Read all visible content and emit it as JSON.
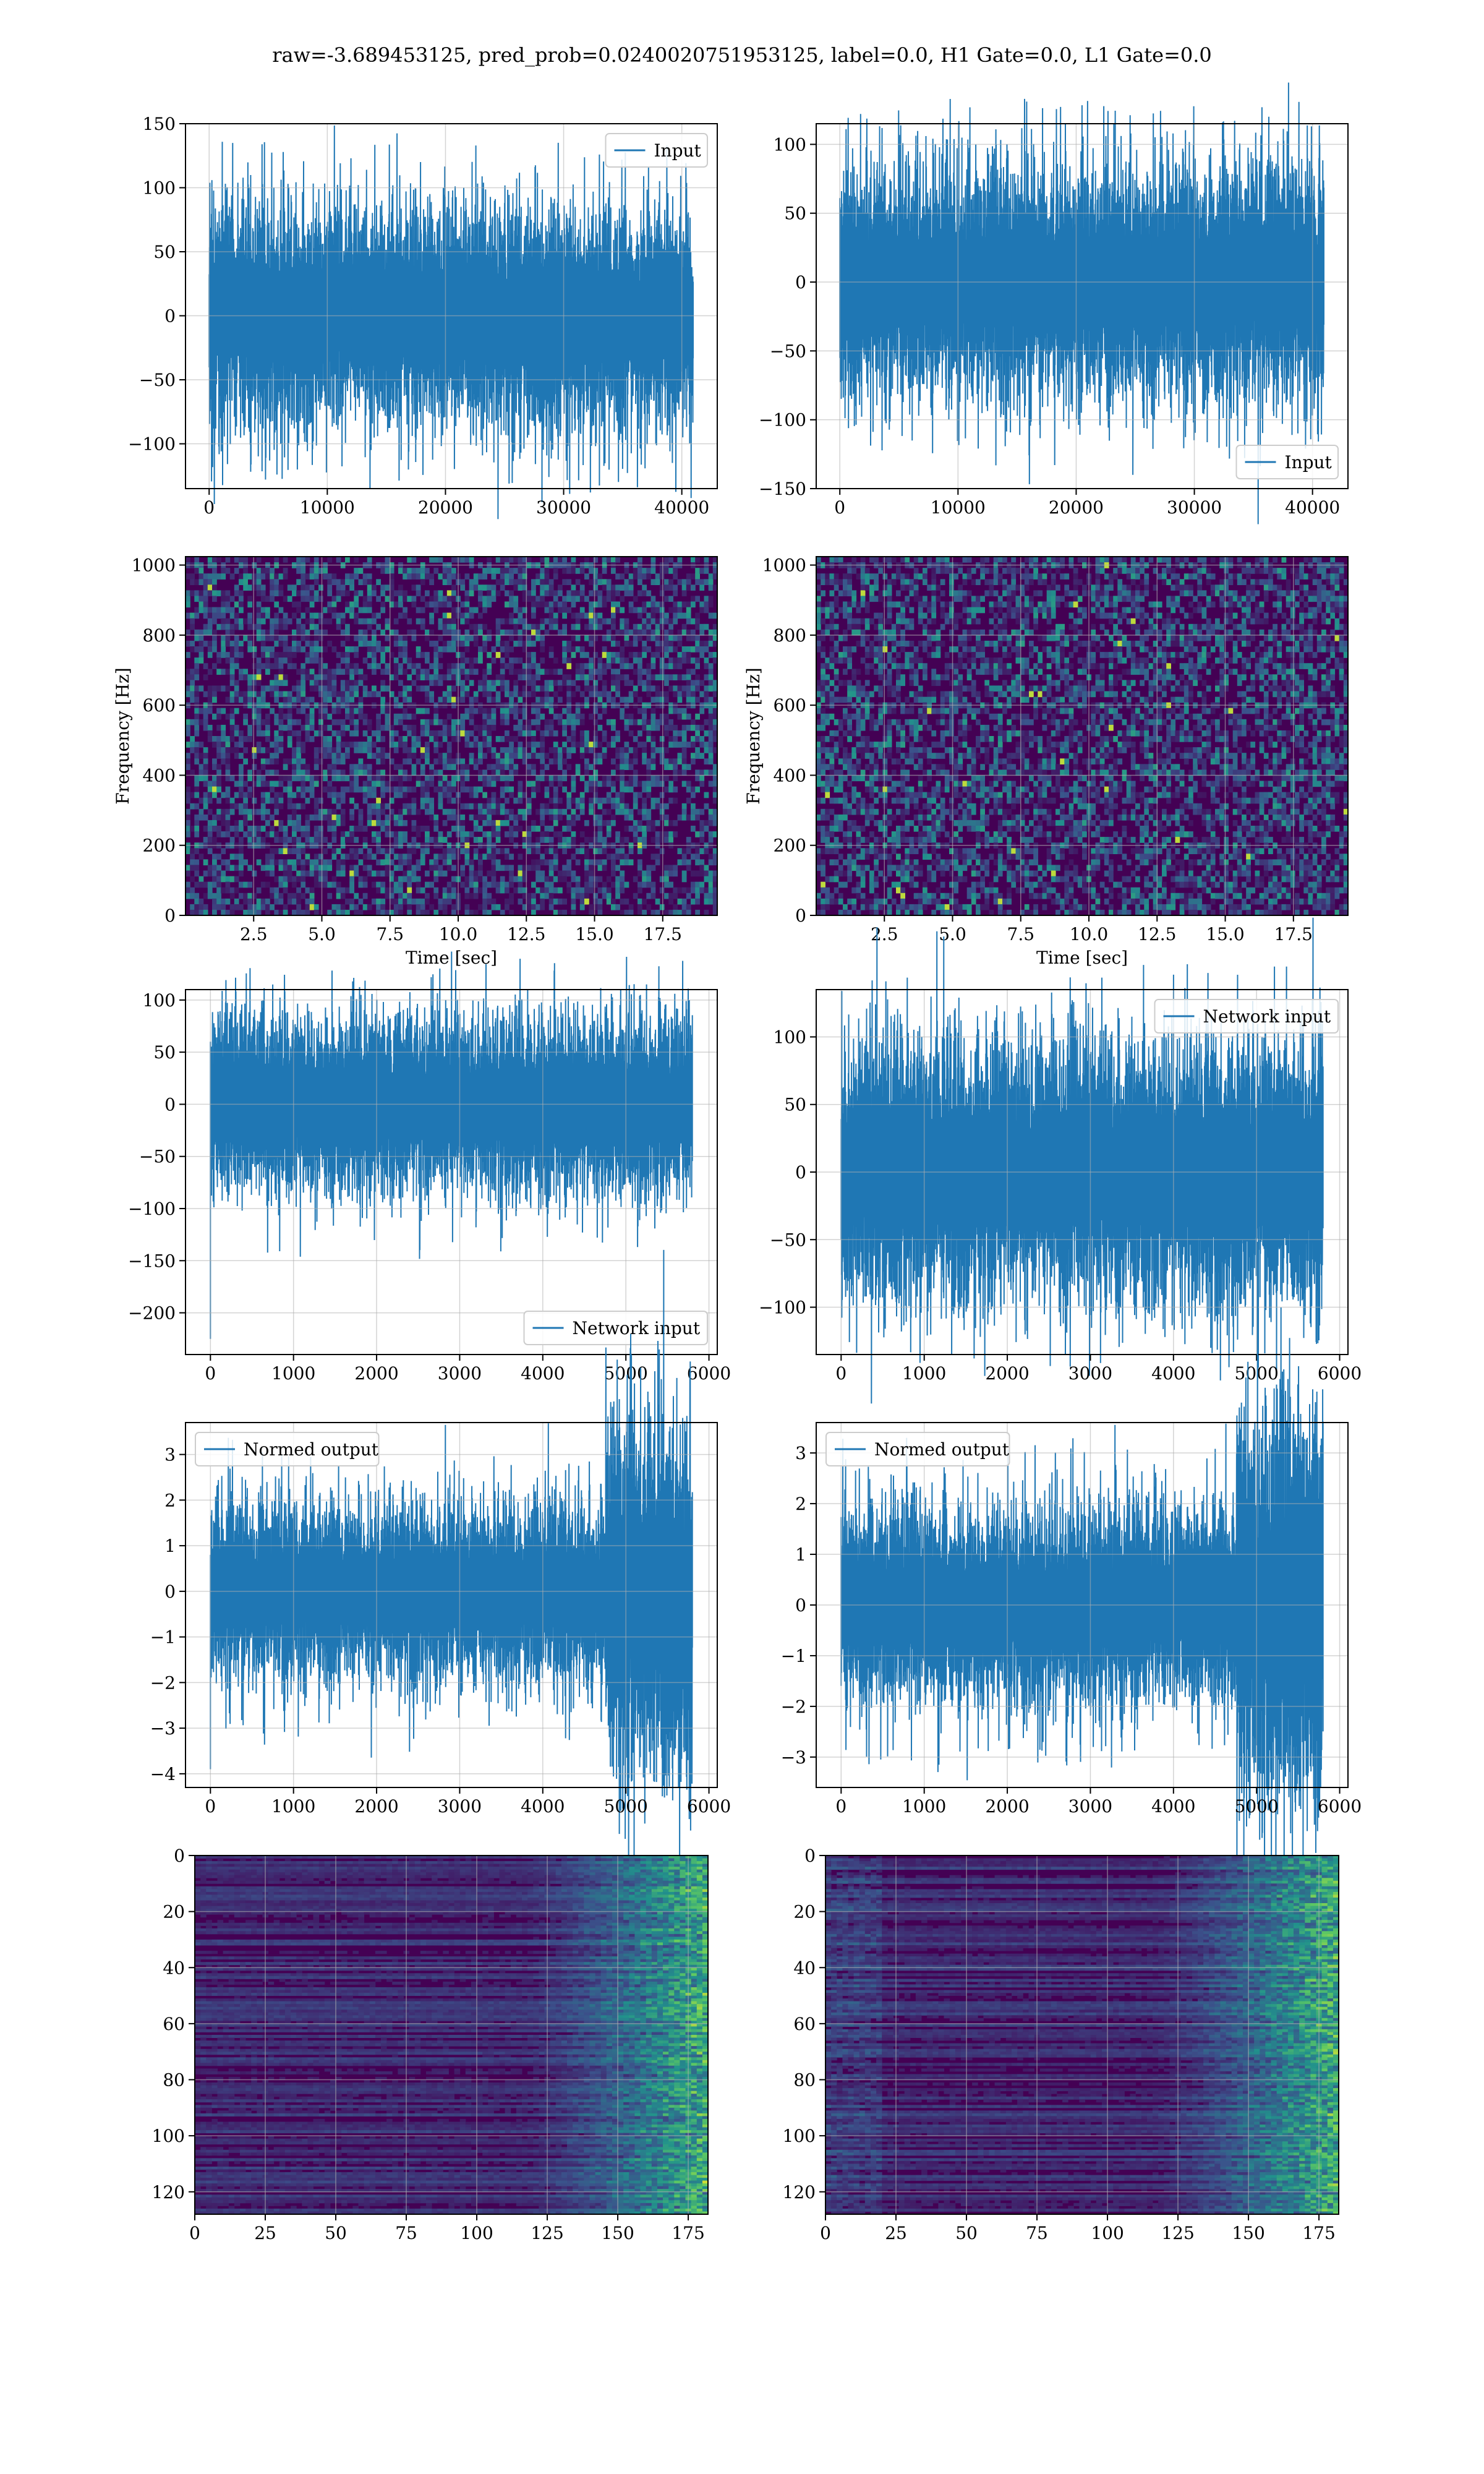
{
  "suptitle": "raw=-3.689453125, pred_prob=0.0240020751953125, label=0.0, H1 Gate=0.0, L1 Gate=0.0",
  "colors": {
    "line": "#1f77b4",
    "grid": "#b0b0b0",
    "cmap": [
      "#440154",
      "#3b528b",
      "#21918c",
      "#5ec962",
      "#fde725"
    ]
  },
  "chart_data": [
    {
      "id": "h1-input",
      "type": "line",
      "series": [
        {
          "name": "Input",
          "n": 40960,
          "amplitude": 22,
          "spike": 135
        }
      ],
      "xlim": [
        -2000,
        43000
      ],
      "ylim": [
        -135,
        150
      ],
      "xticks": [
        {
          "v": 0,
          "label": "0"
        },
        {
          "v": 10000,
          "label": "10000"
        },
        {
          "v": 20000,
          "label": "20000"
        },
        {
          "v": 30000,
          "label": "30000"
        },
        {
          "v": 40000,
          "label": "40000"
        }
      ],
      "yticks": [
        {
          "v": -100,
          "label": "−100"
        },
        {
          "v": -50,
          "label": "−50"
        },
        {
          "v": 0,
          "label": "0"
        },
        {
          "v": 50,
          "label": "50"
        },
        {
          "v": 100,
          "label": "100"
        },
        {
          "v": 150,
          "label": "150"
        }
      ],
      "legend": "upper right",
      "grid": true,
      "xlabel": "",
      "ylabel": ""
    },
    {
      "id": "l1-input",
      "type": "line",
      "series": [
        {
          "name": "Input",
          "n": 40960,
          "amplitude": 22,
          "spike": 135
        }
      ],
      "xlim": [
        -2000,
        43000
      ],
      "ylim": [
        -150,
        115
      ],
      "xticks": [
        {
          "v": 0,
          "label": "0"
        },
        {
          "v": 10000,
          "label": "10000"
        },
        {
          "v": 20000,
          "label": "20000"
        },
        {
          "v": 30000,
          "label": "30000"
        },
        {
          "v": 40000,
          "label": "40000"
        }
      ],
      "yticks": [
        {
          "v": -150,
          "label": "−150"
        },
        {
          "v": -100,
          "label": "−100"
        },
        {
          "v": -50,
          "label": "−50"
        },
        {
          "v": 0,
          "label": "0"
        },
        {
          "v": 50,
          "label": "50"
        },
        {
          "v": 100,
          "label": "100"
        }
      ],
      "legend": "lower right",
      "grid": true,
      "xlabel": "",
      "ylabel": ""
    },
    {
      "id": "h1-spec",
      "type": "heatmap",
      "xlim": [
        0,
        19.5
      ],
      "ylim": [
        0,
        1024
      ],
      "xticks": [
        {
          "v": 2.5,
          "label": "2.5"
        },
        {
          "v": 5,
          "label": "5.0"
        },
        {
          "v": 7.5,
          "label": "7.5"
        },
        {
          "v": 10,
          "label": "10.0"
        },
        {
          "v": 12.5,
          "label": "12.5"
        },
        {
          "v": 15,
          "label": "15.0"
        },
        {
          "v": 17.5,
          "label": "17.5"
        }
      ],
      "yticks": [
        {
          "v": 0,
          "label": "0"
        },
        {
          "v": 200,
          "label": "200"
        },
        {
          "v": 400,
          "label": "400"
        },
        {
          "v": 600,
          "label": "600"
        },
        {
          "v": 800,
          "label": "800"
        },
        {
          "v": 1000,
          "label": "1000"
        }
      ],
      "xlabel": "Time [sec]",
      "ylabel": "Frequency [Hz]",
      "grid": true
    },
    {
      "id": "l1-spec",
      "type": "heatmap",
      "xlim": [
        0,
        19.5
      ],
      "ylim": [
        0,
        1024
      ],
      "xticks": [
        {
          "v": 2.5,
          "label": "2.5"
        },
        {
          "v": 5,
          "label": "5.0"
        },
        {
          "v": 7.5,
          "label": "7.5"
        },
        {
          "v": 10,
          "label": "10.0"
        },
        {
          "v": 12.5,
          "label": "12.5"
        },
        {
          "v": 15,
          "label": "15.0"
        },
        {
          "v": 17.5,
          "label": "17.5"
        }
      ],
      "yticks": [
        {
          "v": 0,
          "label": "0"
        },
        {
          "v": 200,
          "label": "200"
        },
        {
          "v": 400,
          "label": "400"
        },
        {
          "v": 600,
          "label": "600"
        },
        {
          "v": 800,
          "label": "800"
        },
        {
          "v": 1000,
          "label": "1000"
        }
      ],
      "xlabel": "Time [sec]",
      "ylabel": "Frequency [Hz]",
      "grid": true
    },
    {
      "id": "h1-network",
      "type": "line",
      "series": [
        {
          "name": "Network input",
          "n": 5800,
          "amplitude": 22,
          "spike": 100
        }
      ],
      "xlim": [
        -300,
        6100
      ],
      "ylim": [
        -240,
        110
      ],
      "xticks": [
        {
          "v": 0,
          "label": "0"
        },
        {
          "v": 1000,
          "label": "1000"
        },
        {
          "v": 2000,
          "label": "2000"
        },
        {
          "v": 3000,
          "label": "3000"
        },
        {
          "v": 4000,
          "label": "4000"
        },
        {
          "v": 5000,
          "label": "5000"
        },
        {
          "v": 6000,
          "label": "6000"
        }
      ],
      "yticks": [
        {
          "v": -200,
          "label": "−200"
        },
        {
          "v": -150,
          "label": "−150"
        },
        {
          "v": -100,
          "label": "−100"
        },
        {
          "v": -50,
          "label": "−50"
        },
        {
          "v": 0,
          "label": "0"
        },
        {
          "v": 50,
          "label": "50"
        },
        {
          "v": 100,
          "label": "100"
        }
      ],
      "legend": "lower right",
      "grid": true,
      "xlabel": "",
      "ylabel": ""
    },
    {
      "id": "l1-network",
      "type": "line",
      "series": [
        {
          "name": "Network input",
          "n": 5800,
          "amplitude": 25,
          "spike": 120
        }
      ],
      "xlim": [
        -300,
        6100
      ],
      "ylim": [
        -135,
        135
      ],
      "xticks": [
        {
          "v": 0,
          "label": "0"
        },
        {
          "v": 1000,
          "label": "1000"
        },
        {
          "v": 2000,
          "label": "2000"
        },
        {
          "v": 3000,
          "label": "3000"
        },
        {
          "v": 4000,
          "label": "4000"
        },
        {
          "v": 5000,
          "label": "5000"
        },
        {
          "v": 6000,
          "label": "6000"
        }
      ],
      "yticks": [
        {
          "v": -100,
          "label": "−100"
        },
        {
          "v": -50,
          "label": "−50"
        },
        {
          "v": 0,
          "label": "0"
        },
        {
          "v": 50,
          "label": "50"
        },
        {
          "v": 100,
          "label": "100"
        }
      ],
      "legend": "upper right",
      "grid": true,
      "xlabel": "",
      "ylabel": ""
    },
    {
      "id": "h1-normed",
      "type": "line",
      "series": [
        {
          "name": "Normed output",
          "n": 5800,
          "amplitude": 0.5,
          "spike": 3.4
        }
      ],
      "xlim": [
        -300,
        6100
      ],
      "ylim": [
        -4.3,
        3.7
      ],
      "xticks": [
        {
          "v": 0,
          "label": "0"
        },
        {
          "v": 1000,
          "label": "1000"
        },
        {
          "v": 2000,
          "label": "2000"
        },
        {
          "v": 3000,
          "label": "3000"
        },
        {
          "v": 4000,
          "label": "4000"
        },
        {
          "v": 5000,
          "label": "5000"
        },
        {
          "v": 6000,
          "label": "6000"
        }
      ],
      "yticks": [
        {
          "v": -4,
          "label": "−4"
        },
        {
          "v": -3,
          "label": "−3"
        },
        {
          "v": -2,
          "label": "−2"
        },
        {
          "v": -1,
          "label": "−1"
        },
        {
          "v": 0,
          "label": "0"
        },
        {
          "v": 1,
          "label": "1"
        },
        {
          "v": 2,
          "label": "2"
        },
        {
          "v": 3,
          "label": "3"
        }
      ],
      "legend": "upper left",
      "grid": true,
      "xlabel": "",
      "ylabel": ""
    },
    {
      "id": "l1-normed",
      "type": "line",
      "series": [
        {
          "name": "Normed output",
          "n": 5800,
          "amplitude": 0.5,
          "spike": 3.3
        }
      ],
      "xlim": [
        -300,
        6100
      ],
      "ylim": [
        -3.6,
        3.6
      ],
      "xticks": [
        {
          "v": 0,
          "label": "0"
        },
        {
          "v": 1000,
          "label": "1000"
        },
        {
          "v": 2000,
          "label": "2000"
        },
        {
          "v": 3000,
          "label": "3000"
        },
        {
          "v": 4000,
          "label": "4000"
        },
        {
          "v": 5000,
          "label": "5000"
        },
        {
          "v": 6000,
          "label": "6000"
        }
      ],
      "yticks": [
        {
          "v": -3,
          "label": "−3"
        },
        {
          "v": -2,
          "label": "−2"
        },
        {
          "v": -1,
          "label": "−1"
        },
        {
          "v": 0,
          "label": "0"
        },
        {
          "v": 1,
          "label": "1"
        },
        {
          "v": 2,
          "label": "2"
        },
        {
          "v": 3,
          "label": "3"
        }
      ],
      "legend": "upper left",
      "grid": true,
      "xlabel": "",
      "ylabel": ""
    },
    {
      "id": "h1-features",
      "type": "heatmap",
      "xlim": [
        0,
        182
      ],
      "ylim": [
        128,
        0
      ],
      "xticks": [
        {
          "v": 0,
          "label": "0"
        },
        {
          "v": 25,
          "label": "25"
        },
        {
          "v": 50,
          "label": "50"
        },
        {
          "v": 75,
          "label": "75"
        },
        {
          "v": 100,
          "label": "100"
        },
        {
          "v": 125,
          "label": "125"
        },
        {
          "v": 150,
          "label": "150"
        },
        {
          "v": 175,
          "label": "175"
        }
      ],
      "yticks": [
        {
          "v": 0,
          "label": "0"
        },
        {
          "v": 20,
          "label": "20"
        },
        {
          "v": 40,
          "label": "40"
        },
        {
          "v": 60,
          "label": "60"
        },
        {
          "v": 80,
          "label": "80"
        },
        {
          "v": 100,
          "label": "100"
        },
        {
          "v": 120,
          "label": "120"
        }
      ],
      "xlabel": "",
      "ylabel": "",
      "grid": true
    },
    {
      "id": "l1-features",
      "type": "heatmap",
      "xlim": [
        0,
        182
      ],
      "ylim": [
        128,
        0
      ],
      "xticks": [
        {
          "v": 0,
          "label": "0"
        },
        {
          "v": 25,
          "label": "25"
        },
        {
          "v": 50,
          "label": "50"
        },
        {
          "v": 75,
          "label": "75"
        },
        {
          "v": 100,
          "label": "100"
        },
        {
          "v": 125,
          "label": "125"
        },
        {
          "v": 150,
          "label": "150"
        },
        {
          "v": 175,
          "label": "175"
        }
      ],
      "yticks": [
        {
          "v": 0,
          "label": "0"
        },
        {
          "v": 20,
          "label": "20"
        },
        {
          "v": 40,
          "label": "40"
        },
        {
          "v": 60,
          "label": "60"
        },
        {
          "v": 80,
          "label": "80"
        },
        {
          "v": 100,
          "label": "100"
        },
        {
          "v": 120,
          "label": "120"
        }
      ],
      "xlabel": "",
      "ylabel": "",
      "grid": true
    }
  ]
}
